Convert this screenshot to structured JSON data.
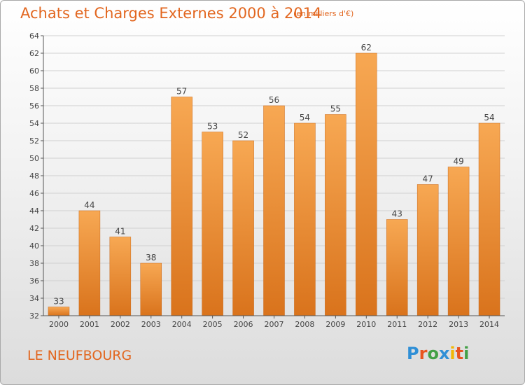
{
  "header": {
    "title": "Achats et Charges Externes 2000 à 2014",
    "subtitle": "(en milliers d'€)"
  },
  "footer": {
    "location": "LE NEUFBOURG",
    "logo_text": "Proxiti"
  },
  "colors": {
    "title": "#e2661f",
    "bar_light": "#f7a853",
    "bar_dark": "#d9731c",
    "grid": "#d0d0d0",
    "axis": "#555555",
    "logo": [
      "#2f8fd6",
      "#e8551f",
      "#43a047",
      "#2f8fd6",
      "#f2b705",
      "#e8551f",
      "#43a047"
    ]
  },
  "chart_data": {
    "type": "bar",
    "categories": [
      "2000",
      "2001",
      "2002",
      "2003",
      "2004",
      "2005",
      "2006",
      "2007",
      "2008",
      "2009",
      "2010",
      "2011",
      "2012",
      "2013",
      "2014"
    ],
    "values": [
      33,
      44,
      41,
      38,
      57,
      53,
      52,
      56,
      54,
      55,
      62,
      43,
      47,
      49,
      54
    ],
    "title": "Achats et Charges Externes 2000 à 2014",
    "xlabel": "",
    "ylabel": "",
    "ylim": [
      32,
      64
    ],
    "yticks": [
      32,
      34,
      36,
      38,
      40,
      42,
      44,
      46,
      48,
      50,
      52,
      54,
      56,
      58,
      60,
      62,
      64
    ],
    "grid": true,
    "data_labels": true
  }
}
